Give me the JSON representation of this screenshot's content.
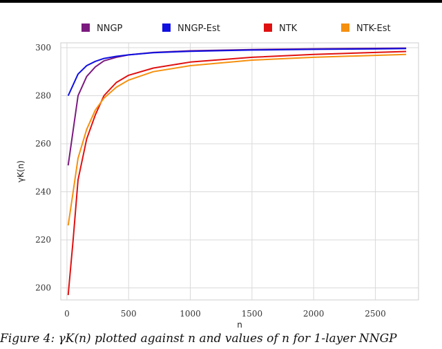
{
  "chart_data": {
    "type": "line",
    "xlabel": "n",
    "ylabel": "γK(n)",
    "xlim": [
      -50,
      2850
    ],
    "ylim": [
      195,
      302
    ],
    "xticks": [
      0,
      500,
      1000,
      1500,
      2000,
      2500
    ],
    "yticks": [
      200,
      220,
      240,
      260,
      280,
      300
    ],
    "grid": true,
    "legend_position": "top",
    "series": [
      {
        "name": "NNGP",
        "color": "#7b1a7e",
        "x": [
          10,
          90,
          160,
          230,
          300,
          400,
          500,
          700,
          1000,
          1500,
          2000,
          2500,
          2750
        ],
        "y": [
          251,
          280,
          288,
          292,
          294.5,
          296,
          297,
          298,
          298.7,
          299.2,
          299.5,
          299.7,
          299.8
        ]
      },
      {
        "name": "NNGP-Est",
        "color": "#1010e0",
        "x": [
          10,
          90,
          160,
          230,
          300,
          400,
          500,
          700,
          1000,
          1500,
          2000,
          2500,
          2750
        ],
        "y": [
          280,
          289,
          292.5,
          294.3,
          295.5,
          296.4,
          297,
          297.9,
          298.5,
          299,
          299.3,
          299.5,
          299.6
        ]
      },
      {
        "name": "NTK",
        "color": "#e01010",
        "x": [
          10,
          50,
          90,
          160,
          230,
          300,
          400,
          500,
          700,
          1000,
          1500,
          2000,
          2500,
          2750
        ],
        "y": [
          197,
          220,
          245,
          262,
          272,
          280,
          285.5,
          288.5,
          291.5,
          294,
          296,
          297.2,
          298,
          298.4
        ]
      },
      {
        "name": "NTK-Est",
        "color": "#f5900f",
        "x": [
          10,
          50,
          90,
          160,
          230,
          300,
          400,
          500,
          700,
          1000,
          1500,
          2000,
          2500,
          2750
        ],
        "y": [
          226,
          240,
          254,
          266,
          274,
          279,
          283.5,
          286.5,
          290,
          292.5,
          294.8,
          296,
          296.8,
          297.2
        ]
      }
    ]
  },
  "caption": "Figure 4: γK(n) plotted against n and values of n for 1-layer NNGP"
}
